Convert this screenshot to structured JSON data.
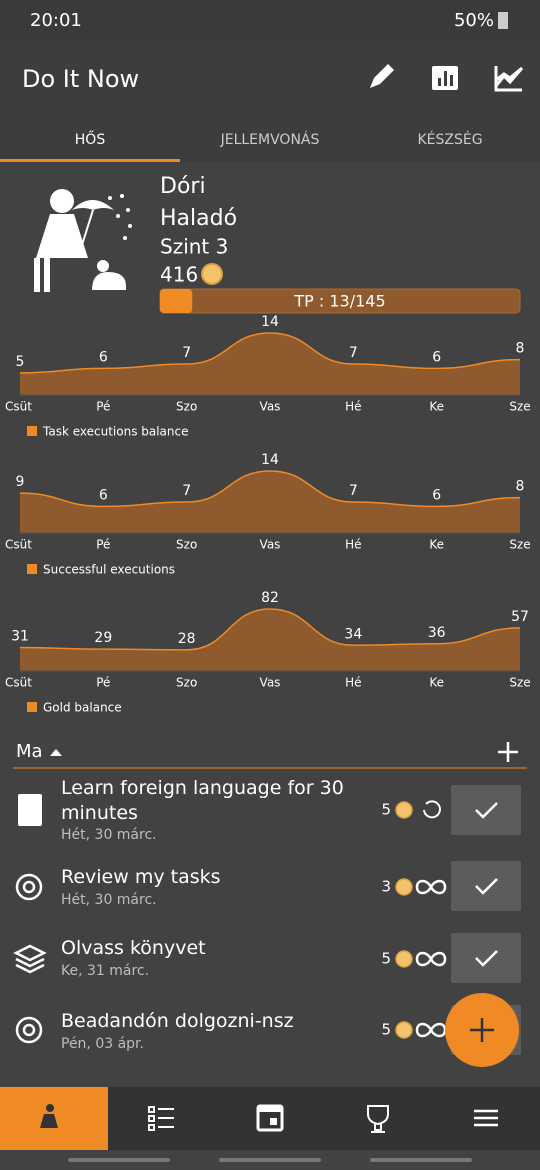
{
  "status_bar": {
    "time": "20:01",
    "battery": "50%"
  },
  "app_bar": {
    "title": "Do It Now"
  },
  "tabs": [
    "HŐS",
    "JELLEMVONÁS",
    "KÉSZSÉG"
  ],
  "hero": {
    "name": "Dóri",
    "rank": "Haladó",
    "level": "Szint 3",
    "gold": "416",
    "tp_label": "TP : 13/145",
    "tp_current": 13,
    "tp_max": 145
  },
  "charts": [
    {
      "type": "area",
      "legend": "Task executions balance",
      "color": "#f08a24",
      "categories": [
        "Csüt",
        "Pé",
        "Szo",
        "Vas",
        "Hé",
        "Ke",
        "Sze"
      ],
      "values": [
        5,
        6,
        7,
        14,
        7,
        6,
        8
      ]
    },
    {
      "type": "area",
      "legend": "Successful executions",
      "color": "#f08a24",
      "categories": [
        "Csüt",
        "Pé",
        "Szo",
        "Vas",
        "Hé",
        "Ke",
        "Sze"
      ],
      "values": [
        9,
        6,
        7,
        14,
        7,
        6,
        8
      ]
    },
    {
      "type": "area",
      "legend": "Gold balance",
      "color": "#f08a24",
      "categories": [
        "Csüt",
        "Pé",
        "Szo",
        "Vas",
        "Hé",
        "Ke",
        "Sze"
      ],
      "values": [
        31,
        29,
        28,
        82,
        34,
        36,
        57
      ]
    }
  ],
  "list_header": "Ma",
  "tasks": [
    {
      "title": "Learn foreign language for 30 minutes",
      "date": "Hét, 30 márc.",
      "gold": "5"
    },
    {
      "title": "Review my tasks",
      "date": "Hét, 30 márc.",
      "gold": "3"
    },
    {
      "title": "Olvass könyvet",
      "date": "Ke, 31 márc.",
      "gold": "5"
    },
    {
      "title": "Beadandón dolgozni-nsz",
      "date": "Pén, 03 ápr.",
      "gold": "5"
    }
  ]
}
